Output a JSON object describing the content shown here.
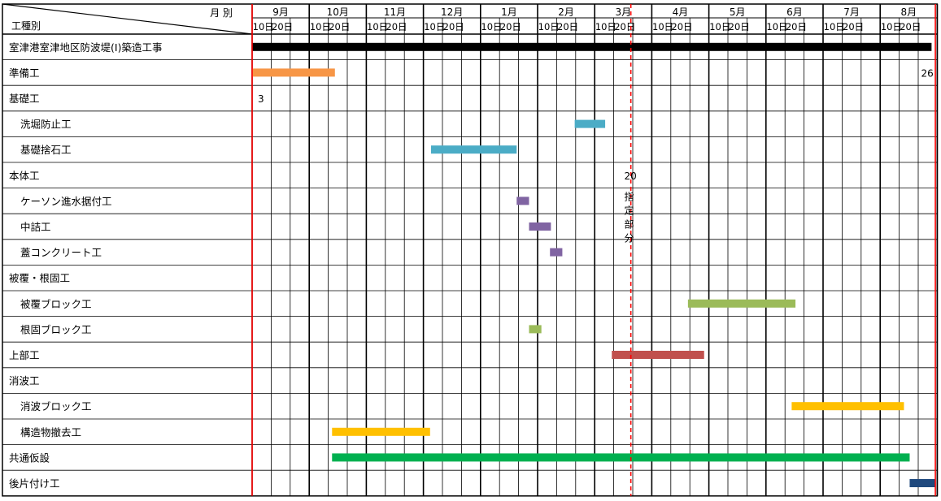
{
  "chart_data": {
    "type": "gantt",
    "title": "",
    "header": {
      "row_header_label": "工種別",
      "column_header_label": "月 別"
    },
    "months": [
      "9月",
      "10月",
      "11月",
      "12月",
      "1月",
      "2月",
      "3月",
      "4月",
      "5月",
      "6月",
      "7月",
      "8月"
    ],
    "sub_columns": [
      "10日",
      "20日"
    ],
    "columns_per_month": 3,
    "tasks": [
      {
        "name": "室津港室津地区防波堤(Ⅰ)築造工事",
        "indent": 0,
        "bar": [
          0,
          35.7
        ],
        "color": "#000000"
      },
      {
        "name": "準備工",
        "indent": 0,
        "bar": [
          0,
          4.35
        ],
        "color": "#f79646"
      },
      {
        "name": "基礎工",
        "indent": 0,
        "bar": null,
        "color": ""
      },
      {
        "name": "洗堀防止工",
        "indent": 1,
        "bar": [
          16.95,
          18.55
        ],
        "color": "#4bacc6"
      },
      {
        "name": "基礎捨石工",
        "indent": 1,
        "bar": [
          9.4,
          13.9
        ],
        "color": "#4bacc6"
      },
      {
        "name": "本体工",
        "indent": 0,
        "bar": null,
        "color": ""
      },
      {
        "name": "ケーソン進水据付工",
        "indent": 1,
        "bar": [
          13.9,
          14.55
        ],
        "color": "#8064a2"
      },
      {
        "name": "中詰工",
        "indent": 1,
        "bar": [
          14.55,
          15.7
        ],
        "color": "#8064a2"
      },
      {
        "name": "蓋コンクリート工",
        "indent": 1,
        "bar": [
          15.65,
          16.3
        ],
        "color": "#8064a2"
      },
      {
        "name": "被覆・根固工",
        "indent": 0,
        "bar": null,
        "color": ""
      },
      {
        "name": "被覆ブロック工",
        "indent": 1,
        "bar": [
          22.9,
          28.55
        ],
        "color": "#9bbb59"
      },
      {
        "name": "根固ブロック工",
        "indent": 1,
        "bar": [
          14.55,
          15.2
        ],
        "color": "#9bbb59"
      },
      {
        "name": "上部工",
        "indent": 0,
        "bar": [
          18.9,
          23.75
        ],
        "color": "#c0504d"
      },
      {
        "name": "消波工",
        "indent": 0,
        "bar": null,
        "color": ""
      },
      {
        "name": "消波ブロック工",
        "indent": 1,
        "bar": [
          28.35,
          34.25
        ],
        "color": "#ffc000"
      },
      {
        "name": "構造物撤去工",
        "indent": 1,
        "bar": [
          4.2,
          9.35
        ],
        "color": "#ffc000"
      },
      {
        "name": "共通仮設",
        "indent": 0,
        "bar": [
          4.2,
          34.55
        ],
        "color": "#00b050"
      },
      {
        "name": "後片付け工",
        "indent": 0,
        "bar": [
          34.55,
          35.9
        ],
        "color": "#1f497d"
      }
    ],
    "markers": [
      {
        "type": "line",
        "pos": 0,
        "color": "#ff0000",
        "style": "solid"
      },
      {
        "type": "line",
        "pos": 35.9,
        "color": "#ff0000",
        "style": "solid"
      },
      {
        "type": "line",
        "pos": 19.9,
        "color": "#ff0000",
        "style": "dashed"
      }
    ],
    "annotations": [
      {
        "text": "3",
        "pos": 0.3,
        "row": 2
      },
      {
        "text": "26",
        "pos": 35.15,
        "row": 1
      },
      {
        "text": "20",
        "pos": 19.55,
        "row": 5
      },
      {
        "text": "指定部分",
        "pos": 19.55,
        "row": 6,
        "vertical": true
      }
    ]
  }
}
